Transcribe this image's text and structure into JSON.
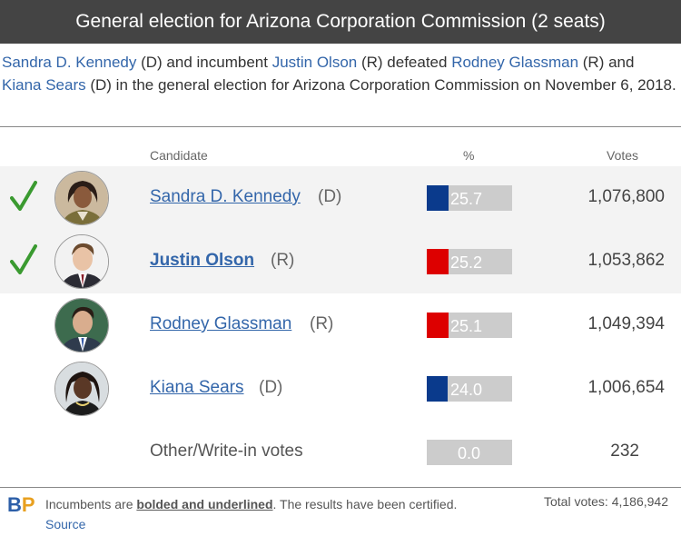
{
  "header": {
    "title": "General election for Arizona Corporation Commission (2 seats)"
  },
  "summary": {
    "c1": "Sandra D. Kennedy",
    "t1": " (D) and incumbent ",
    "c2": "Justin Olson",
    "t2": " (R) defeated ",
    "c3": "Rodney Glassman",
    "t3": " (R) and ",
    "c4": "Kiana Sears",
    "t4": " (D) in the general election for Arizona Corporation Commission on November 6, 2018."
  },
  "columns": {
    "candidate": "Candidate",
    "percent": "%",
    "votes": "Votes"
  },
  "colors": {
    "dem": "#0a3a8c",
    "rep": "#dd0000",
    "bar_bg": "#cccccc",
    "check": "#3a9a30",
    "link": "#3366aa"
  },
  "rows": [
    {
      "name": "Sandra D. Kennedy",
      "party": "(D)",
      "pct": "25.7",
      "share": 0.257,
      "votes": "1,076,800",
      "winner": true,
      "incumbent": false,
      "party_color": "#0a3a8c"
    },
    {
      "name": "Justin Olson",
      "party": "(R)",
      "pct": "25.2",
      "share": 0.252,
      "votes": "1,053,862",
      "winner": true,
      "incumbent": true,
      "party_color": "#dd0000"
    },
    {
      "name": "Rodney Glassman",
      "party": "(R)",
      "pct": "25.1",
      "share": 0.251,
      "votes": "1,049,394",
      "winner": false,
      "incumbent": false,
      "party_color": "#dd0000"
    },
    {
      "name": "Kiana Sears",
      "party": "(D)",
      "pct": "24.0",
      "share": 0.24,
      "votes": "1,006,654",
      "winner": false,
      "incumbent": false,
      "party_color": "#0a3a8c"
    },
    {
      "name": "Other/Write-in votes",
      "party": "",
      "pct": "0.0",
      "share": 0.0,
      "votes": "232",
      "winner": false,
      "incumbent": false,
      "party_color": "#cccccc"
    }
  ],
  "footer": {
    "logo_b": "B",
    "logo_p": "P",
    "text1": "Incumbents are ",
    "bold_text": "bolded and underlined",
    "text2": ". The results have been certified. ",
    "source": "Source",
    "total": "Total votes: 4,186,942"
  }
}
